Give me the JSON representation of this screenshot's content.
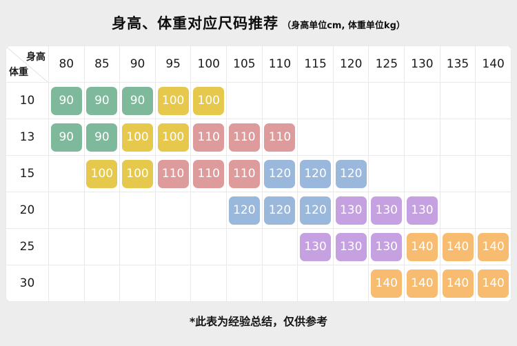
{
  "page": {
    "title": "身高、体重对应尺码推荐",
    "title_note": "（身高单位cm, 体重单位kg）",
    "footer": "*此表为经验总结，仅供参考"
  },
  "chart_data": {
    "type": "heatmap",
    "title": "身高、体重对应尺码推荐",
    "subtitle": "身高单位cm, 体重单位kg",
    "xlabel": "身高 (cm)",
    "ylabel": "体重 (kg)",
    "corner_labels": {
      "top_right": "身高",
      "bottom_left": "体重"
    },
    "columns": [
      "80",
      "85",
      "90",
      "95",
      "100",
      "105",
      "110",
      "115",
      "120",
      "125",
      "130",
      "135",
      "140"
    ],
    "rows": [
      "10",
      "13",
      "15",
      "20",
      "25",
      "30"
    ],
    "cells": [
      [
        "90",
        "90",
        "90",
        "100",
        "100",
        "",
        "",
        "",
        "",
        "",
        "",
        "",
        ""
      ],
      [
        "90",
        "90",
        "100",
        "100",
        "110",
        "110",
        "110",
        "",
        "",
        "",
        "",
        "",
        ""
      ],
      [
        "",
        "100",
        "100",
        "110",
        "110",
        "110",
        "120",
        "120",
        "120",
        "",
        "",
        "",
        ""
      ],
      [
        "",
        "",
        "",
        "",
        "",
        "120",
        "120",
        "120",
        "130",
        "130",
        "130",
        "",
        ""
      ],
      [
        "",
        "",
        "",
        "",
        "",
        "",
        "",
        "130",
        "130",
        "130",
        "140",
        "140",
        "140"
      ],
      [
        "",
        "",
        "",
        "",
        "",
        "",
        "",
        "",
        "",
        "140",
        "140",
        "140",
        "140"
      ]
    ],
    "size_colors": {
      "90": "#7FB99C",
      "100": "#E6C84D",
      "110": "#DE9B9B",
      "120": "#9AB8DB",
      "130": "#C6A1E1",
      "140": "#F8BC70"
    },
    "footnote": "*此表为经验总结，仅供参考"
  }
}
